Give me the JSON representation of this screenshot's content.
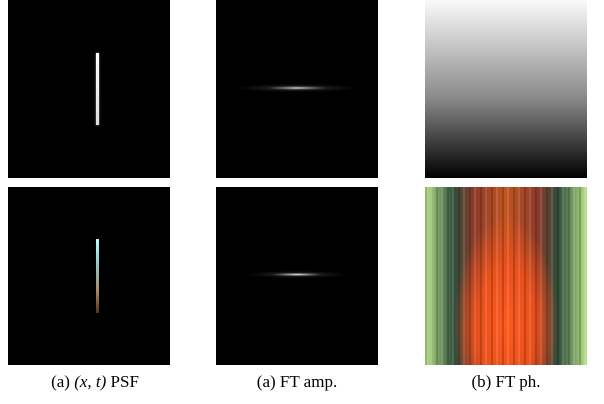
{
  "captions": [
    {
      "prefix": "(a)",
      "math": "(x, t)",
      "suffix": "PSF"
    },
    {
      "text": "(a) FT amp."
    },
    {
      "text": "(b) FT ph."
    }
  ]
}
